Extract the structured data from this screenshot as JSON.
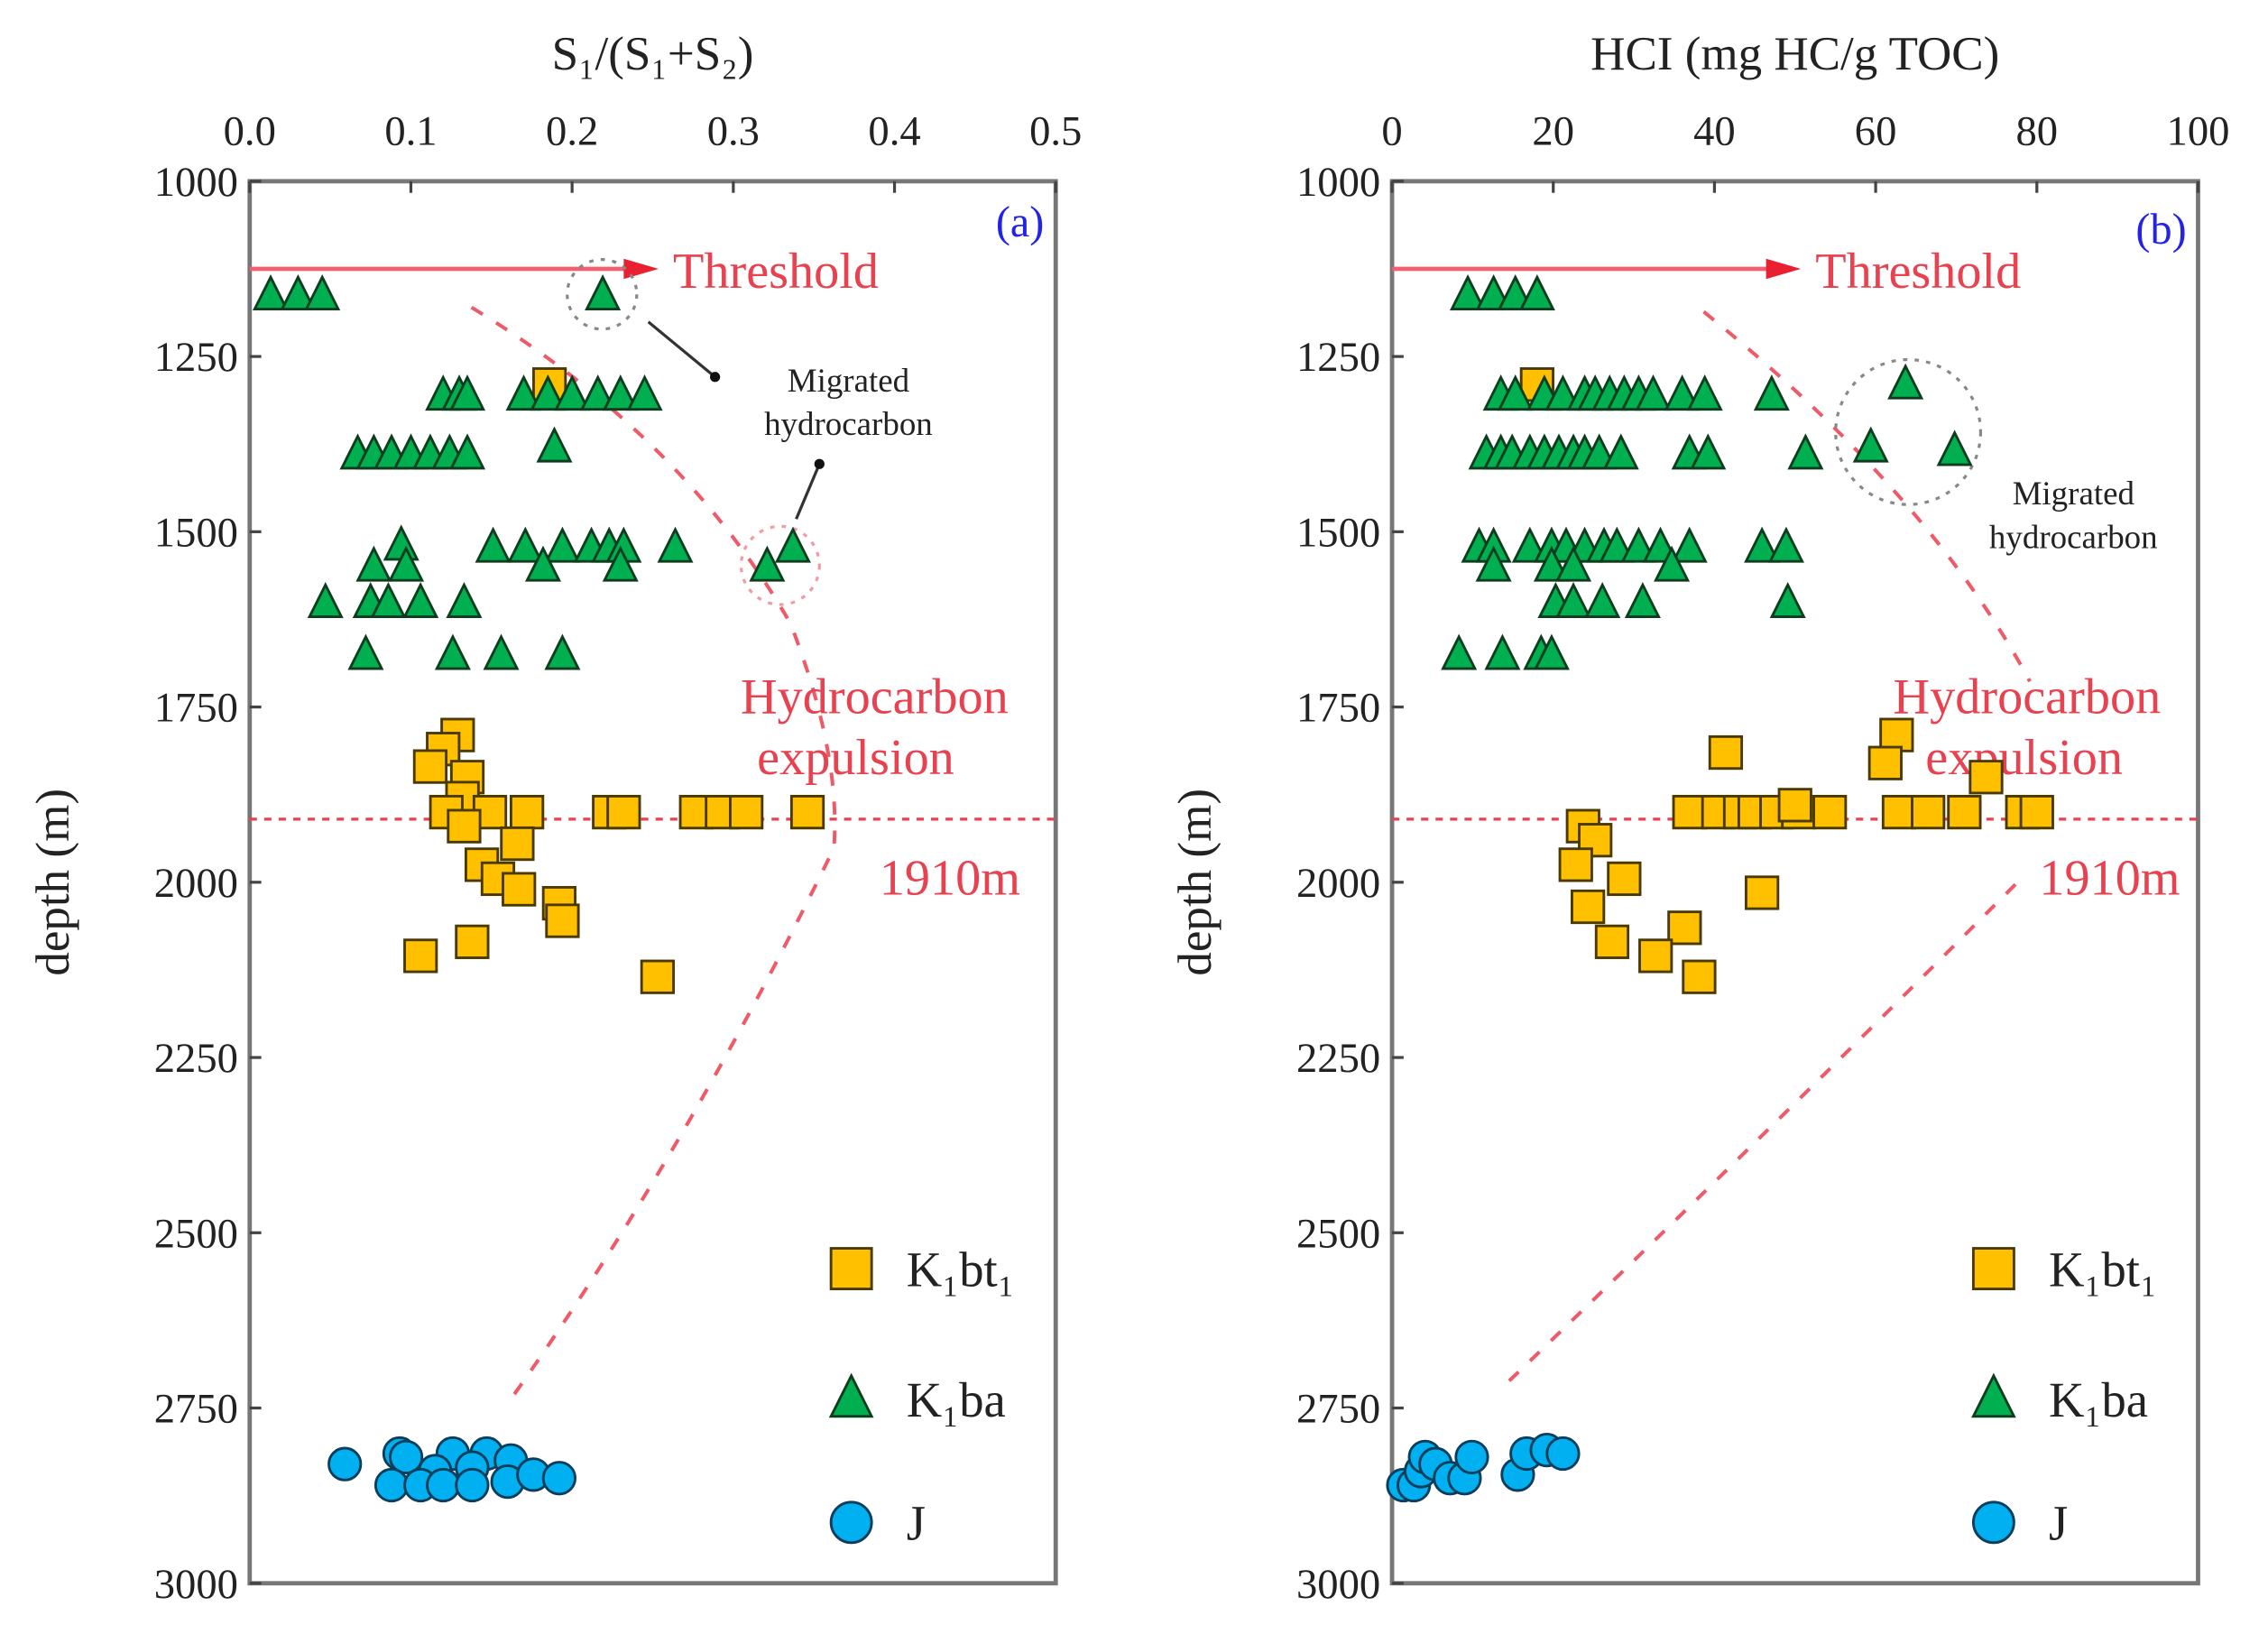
{
  "chart_data": [
    {
      "type": "scatter",
      "panel_label": "(a)",
      "xlabel": "S₁/(S₁+S₂)",
      "ylabel": "depth (m)",
      "xlim": [
        0,
        0.5
      ],
      "ylim": [
        1000,
        3000
      ],
      "y_inverted": true,
      "x_axis_position": "top",
      "xticks": [
        "0.0",
        "0.1",
        "0.2",
        "0.3",
        "0.4",
        "0.5"
      ],
      "yticks": [
        "1000",
        "1250",
        "1500",
        "1750",
        "2000",
        "2250",
        "2500",
        "2750",
        "3000"
      ],
      "annotations": {
        "threshold": "Threshold",
        "threshold_depth": 1125,
        "expulsion": "Hydrocarbon expulsion",
        "depth_line": "1910m",
        "depth_line_value": 1910,
        "migrated": "Migrated hydrocarbon"
      },
      "legend": {
        "placement": "bottom-right",
        "entries": [
          "K₁bt₁",
          "K₁ba",
          "J"
        ]
      },
      "series": [
        {
          "name": "K₁bt₁",
          "marker": "square",
          "color": "#ffc000",
          "points": [
            [
              0.186,
              1290
            ],
            [
              0.129,
              1790
            ],
            [
              0.12,
              1810
            ],
            [
              0.112,
              1835
            ],
            [
              0.135,
              1850
            ],
            [
              0.132,
              1880
            ],
            [
              0.122,
              1900
            ],
            [
              0.149,
              1900
            ],
            [
              0.172,
              1900
            ],
            [
              0.223,
              1900
            ],
            [
              0.232,
              1900
            ],
            [
              0.277,
              1900
            ],
            [
              0.293,
              1900
            ],
            [
              0.308,
              1900
            ],
            [
              0.346,
              1900
            ],
            [
              0.133,
              1920
            ],
            [
              0.166,
              1945
            ],
            [
              0.144,
              1975
            ],
            [
              0.154,
              1995
            ],
            [
              0.167,
              2010
            ],
            [
              0.192,
              2030
            ],
            [
              0.194,
              2055
            ],
            [
              0.106,
              2105
            ],
            [
              0.138,
              2085
            ],
            [
              0.253,
              2135
            ]
          ]
        },
        {
          "name": "K₁ba",
          "marker": "triangle",
          "color": "#00b050",
          "points": [
            [
              0.013,
              1163
            ],
            [
              0.03,
              1163
            ],
            [
              0.045,
              1163
            ],
            [
              0.219,
              1163
            ],
            [
              0.12,
              1306
            ],
            [
              0.13,
              1306
            ],
            [
              0.135,
              1306
            ],
            [
              0.17,
              1306
            ],
            [
              0.185,
              1306
            ],
            [
              0.2,
              1306
            ],
            [
              0.216,
              1306
            ],
            [
              0.23,
              1306
            ],
            [
              0.245,
              1306
            ],
            [
              0.067,
              1390
            ],
            [
              0.077,
              1390
            ],
            [
              0.088,
              1390
            ],
            [
              0.1,
              1390
            ],
            [
              0.112,
              1390
            ],
            [
              0.124,
              1390
            ],
            [
              0.135,
              1390
            ],
            [
              0.189,
              1380
            ],
            [
              0.094,
              1520
            ],
            [
              0.097,
              1550
            ],
            [
              0.077,
              1550
            ],
            [
              0.151,
              1523
            ],
            [
              0.171,
              1523
            ],
            [
              0.194,
              1523
            ],
            [
              0.212,
              1523
            ],
            [
              0.223,
              1523
            ],
            [
              0.232,
              1523
            ],
            [
              0.264,
              1523
            ],
            [
              0.337,
              1523
            ],
            [
              0.321,
              1550
            ],
            [
              0.182,
              1550
            ],
            [
              0.23,
              1550
            ],
            [
              0.047,
              1602
            ],
            [
              0.075,
              1602
            ],
            [
              0.086,
              1602
            ],
            [
              0.106,
              1602
            ],
            [
              0.133,
              1602
            ],
            [
              0.072,
              1676
            ],
            [
              0.126,
              1676
            ],
            [
              0.156,
              1676
            ],
            [
              0.194,
              1676
            ]
          ]
        },
        {
          "name": "J",
          "marker": "circle",
          "color": "#00b0f0",
          "points": [
            [
              0.059,
              2830
            ],
            [
              0.093,
              2815
            ],
            [
              0.097,
              2820
            ],
            [
              0.126,
              2815
            ],
            [
              0.147,
              2815
            ],
            [
              0.162,
              2825
            ],
            [
              0.115,
              2840
            ],
            [
              0.138,
              2835
            ],
            [
              0.088,
              2860
            ],
            [
              0.106,
              2860
            ],
            [
              0.12,
              2860
            ],
            [
              0.138,
              2860
            ],
            [
              0.16,
              2855
            ],
            [
              0.176,
              2845
            ],
            [
              0.192,
              2850
            ]
          ]
        }
      ]
    },
    {
      "type": "scatter",
      "panel_label": "(b)",
      "xlabel": "HCI (mg HC/g TOC)",
      "ylabel": "depth (m)",
      "xlim": [
        0,
        100
      ],
      "ylim": [
        1000,
        3000
      ],
      "y_inverted": true,
      "x_axis_position": "top",
      "xticks": [
        "0",
        "20",
        "40",
        "60",
        "80",
        "100"
      ],
      "yticks": [
        "1000",
        "1250",
        "1500",
        "1750",
        "2000",
        "2250",
        "2500",
        "2750",
        "3000"
      ],
      "annotations": {
        "threshold": "Threshold",
        "threshold_depth": 1125,
        "expulsion": "Hydrocarbon expulsion",
        "depth_line": "1910m",
        "depth_line_value": 1910,
        "migrated": "Migrated hydrocarbon"
      },
      "legend": {
        "placement": "bottom-right",
        "entries": [
          "K₁bt₁",
          "K₁ba",
          "J"
        ]
      },
      "series": [
        {
          "name": "K₁bt₁",
          "marker": "square",
          "color": "#ffc000",
          "points": [
            [
              18,
              1290
            ],
            [
              41.4,
              1815
            ],
            [
              62.6,
              1790
            ],
            [
              61.2,
              1830
            ],
            [
              73.7,
              1850
            ],
            [
              36.9,
              1900
            ],
            [
              40.5,
              1900
            ],
            [
              43.2,
              1900
            ],
            [
              45,
              1900
            ],
            [
              47.7,
              1900
            ],
            [
              50.4,
              1900
            ],
            [
              54.3,
              1900
            ],
            [
              62.9,
              1900
            ],
            [
              66.5,
              1900
            ],
            [
              71,
              1900
            ],
            [
              78.2,
              1900
            ],
            [
              80,
              1900
            ],
            [
              50,
              1890
            ],
            [
              23.7,
              1920
            ],
            [
              25.2,
              1940
            ],
            [
              22.8,
              1975
            ],
            [
              28.8,
              1995
            ],
            [
              24.3,
              2035
            ],
            [
              45.9,
              2015
            ],
            [
              27.3,
              2085
            ],
            [
              36.3,
              2065
            ],
            [
              32.7,
              2105
            ],
            [
              38.1,
              2135
            ]
          ]
        },
        {
          "name": "K₁ba",
          "marker": "triangle",
          "color": "#00b050",
          "points": [
            [
              9.4,
              1163
            ],
            [
              12.6,
              1163
            ],
            [
              15.3,
              1163
            ],
            [
              18,
              1163
            ],
            [
              13.5,
              1306
            ],
            [
              15.3,
              1306
            ],
            [
              18.9,
              1306
            ],
            [
              21.2,
              1306
            ],
            [
              23.9,
              1306
            ],
            [
              25.2,
              1306
            ],
            [
              27,
              1306
            ],
            [
              28.8,
              1306
            ],
            [
              30.6,
              1306
            ],
            [
              32.4,
              1306
            ],
            [
              36,
              1306
            ],
            [
              38.8,
              1306
            ],
            [
              47.1,
              1306
            ],
            [
              63.7,
              1290
            ],
            [
              11.7,
              1390
            ],
            [
              13.5,
              1390
            ],
            [
              14.9,
              1390
            ],
            [
              17.1,
              1390
            ],
            [
              18.9,
              1390
            ],
            [
              20.7,
              1390
            ],
            [
              22.5,
              1390
            ],
            [
              23.9,
              1390
            ],
            [
              25.7,
              1390
            ],
            [
              28.4,
              1390
            ],
            [
              36.9,
              1390
            ],
            [
              39.2,
              1390
            ],
            [
              51.3,
              1390
            ],
            [
              59.4,
              1380
            ],
            [
              69.8,
              1385
            ],
            [
              10.8,
              1523
            ],
            [
              12.6,
              1523
            ],
            [
              17.1,
              1523
            ],
            [
              19.8,
              1523
            ],
            [
              21.6,
              1523
            ],
            [
              23.9,
              1523
            ],
            [
              26.3,
              1523
            ],
            [
              27.9,
              1523
            ],
            [
              30.6,
              1523
            ],
            [
              33.3,
              1523
            ],
            [
              36.9,
              1523
            ],
            [
              45.9,
              1523
            ],
            [
              48.9,
              1523
            ],
            [
              12.6,
              1550
            ],
            [
              19.8,
              1550
            ],
            [
              22.5,
              1550
            ],
            [
              34.7,
              1550
            ],
            [
              20.3,
              1602
            ],
            [
              22.5,
              1602
            ],
            [
              26.1,
              1602
            ],
            [
              31.1,
              1602
            ],
            [
              49.1,
              1602
            ],
            [
              8.3,
              1676
            ],
            [
              13.7,
              1676
            ],
            [
              18.5,
              1676
            ],
            [
              19.8,
              1676
            ]
          ]
        },
        {
          "name": "J",
          "marker": "circle",
          "color": "#00b0f0",
          "points": [
            [
              1.4,
              2860
            ],
            [
              2.7,
              2860
            ],
            [
              3.6,
              2840
            ],
            [
              4.1,
              2820
            ],
            [
              5.4,
              2830
            ],
            [
              7.2,
              2850
            ],
            [
              9,
              2850
            ],
            [
              9.9,
              2820
            ],
            [
              15.6,
              2845
            ],
            [
              16.7,
              2815
            ],
            [
              19.2,
              2810
            ],
            [
              21.2,
              2815
            ]
          ]
        }
      ]
    }
  ]
}
